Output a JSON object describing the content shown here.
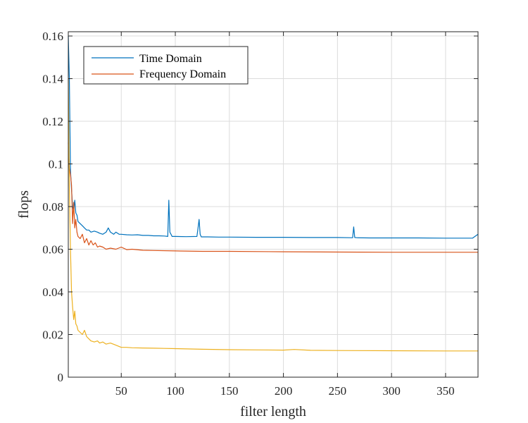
{
  "chart_data": {
    "type": "line",
    "xlabel": "filter length",
    "ylabel": "flops",
    "xlim": [
      1,
      380
    ],
    "ylim": [
      0,
      0.162
    ],
    "xticks": [
      50,
      100,
      150,
      200,
      250,
      300,
      350
    ],
    "yticks": [
      0,
      0.02,
      0.04,
      0.06,
      0.08,
      0.1,
      0.12,
      0.14,
      0.16
    ],
    "ytick_labels": [
      "0",
      "0.02",
      "0.04",
      "0.06",
      "0.08",
      "0.1",
      "0.12",
      "0.14",
      "0.16"
    ],
    "grid": true,
    "legend_position": "top-left",
    "series": [
      {
        "name": "Time Domain",
        "color": "#0072BD",
        "x": [
          1,
          2,
          3,
          4,
          5,
          6,
          7,
          8,
          9,
          10,
          12,
          14,
          16,
          18,
          20,
          22,
          25,
          28,
          30,
          33,
          36,
          38,
          40,
          43,
          45,
          48,
          50,
          55,
          60,
          65,
          70,
          75,
          80,
          85,
          90,
          93,
          94,
          95,
          96,
          97,
          100,
          110,
          120,
          121,
          122,
          123,
          124,
          130,
          140,
          150,
          175,
          200,
          225,
          250,
          262,
          264,
          265,
          266,
          268,
          280,
          300,
          325,
          350,
          375,
          380
        ],
        "values": [
          0.16,
          0.14,
          0.097,
          0.088,
          0.08,
          0.078,
          0.083,
          0.077,
          0.076,
          0.073,
          0.072,
          0.071,
          0.07,
          0.069,
          0.069,
          0.068,
          0.0685,
          0.068,
          0.0675,
          0.067,
          0.068,
          0.07,
          0.068,
          0.067,
          0.068,
          0.067,
          0.067,
          0.0668,
          0.0667,
          0.0668,
          0.0665,
          0.0665,
          0.0663,
          0.0663,
          0.0662,
          0.066,
          0.083,
          0.068,
          0.067,
          0.066,
          0.066,
          0.0659,
          0.066,
          0.07,
          0.074,
          0.067,
          0.0658,
          0.0658,
          0.0657,
          0.0657,
          0.0656,
          0.0656,
          0.0655,
          0.0655,
          0.0654,
          0.0654,
          0.0705,
          0.0655,
          0.0654,
          0.0653,
          0.0653,
          0.0653,
          0.0652,
          0.0652,
          0.067
        ]
      },
      {
        "name": "Frequency Domain",
        "color": "#D95319",
        "x": [
          1,
          2,
          3,
          4,
          5,
          6,
          7,
          8,
          9,
          10,
          12,
          14,
          16,
          18,
          20,
          22,
          24,
          26,
          28,
          30,
          33,
          36,
          40,
          45,
          50,
          55,
          60,
          70,
          80,
          100,
          125,
          150,
          200,
          250,
          300,
          350,
          380
        ],
        "values": [
          0.11,
          0.098,
          0.095,
          0.09,
          0.072,
          0.082,
          0.07,
          0.074,
          0.068,
          0.066,
          0.065,
          0.067,
          0.063,
          0.065,
          0.062,
          0.064,
          0.062,
          0.063,
          0.061,
          0.0615,
          0.061,
          0.06,
          0.0605,
          0.06,
          0.061,
          0.0598,
          0.06,
          0.0595,
          0.0594,
          0.0592,
          0.059,
          0.059,
          0.0588,
          0.0587,
          0.0586,
          0.0586,
          0.0586
        ]
      },
      {
        "name": "",
        "color": "#EDB120",
        "x": [
          1,
          2,
          3,
          4,
          5,
          6,
          7,
          8,
          9,
          10,
          12,
          14,
          16,
          18,
          20,
          22,
          25,
          28,
          30,
          33,
          36,
          40,
          45,
          50,
          55,
          60,
          70,
          80,
          90,
          100,
          125,
          150,
          175,
          200,
          210,
          225,
          250,
          300,
          350,
          380
        ],
        "values": [
          0.14,
          0.09,
          0.06,
          0.04,
          0.033,
          0.027,
          0.031,
          0.025,
          0.024,
          0.022,
          0.021,
          0.02,
          0.022,
          0.019,
          0.018,
          0.017,
          0.0165,
          0.017,
          0.016,
          0.0165,
          0.0155,
          0.016,
          0.015,
          0.014,
          0.014,
          0.0138,
          0.0137,
          0.0136,
          0.0135,
          0.0134,
          0.0131,
          0.0129,
          0.0128,
          0.0127,
          0.013,
          0.0126,
          0.0125,
          0.0124,
          0.0123,
          0.0123
        ]
      }
    ]
  }
}
